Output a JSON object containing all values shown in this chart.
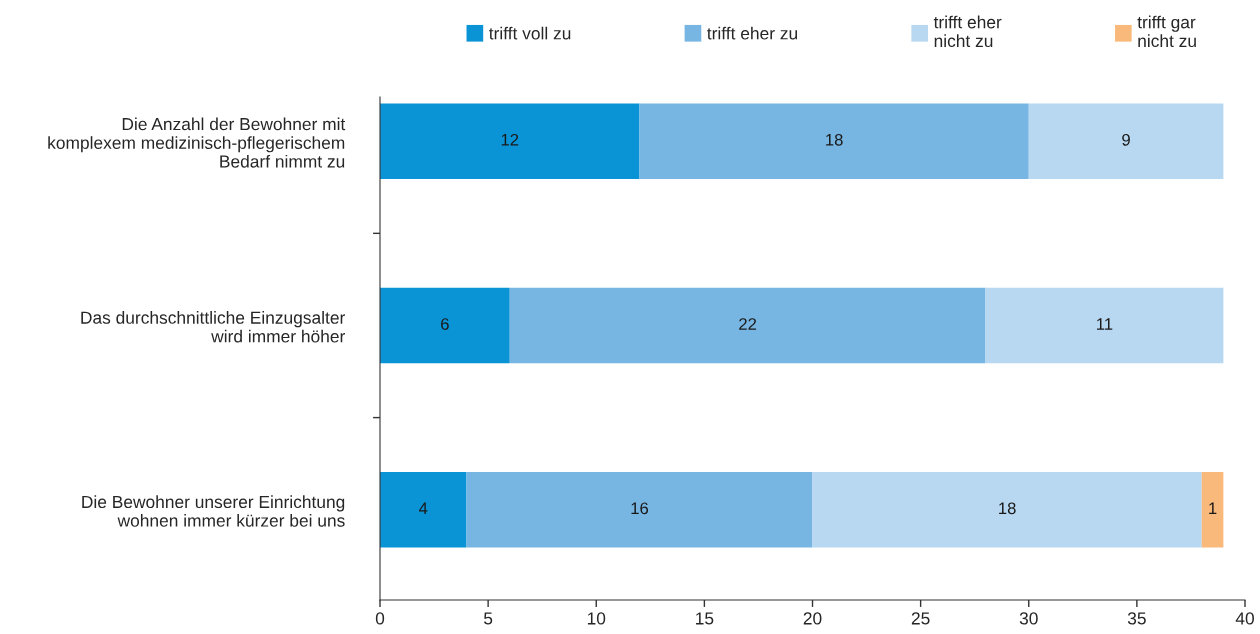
{
  "chart_data": {
    "type": "bar",
    "orientation": "horizontal",
    "stacked": true,
    "categories": [
      "Die Anzahl der Bewohner mit\nkomplexem medizinisch-pflegerischem\nBedarf nimmt zu",
      "Das durchschnittliche Einzugsalter\nwird immer höher",
      "Die Bewohner unserer Einrichtung\nwohnen immer kürzer bei uns"
    ],
    "series": [
      {
        "name": "trifft voll zu",
        "color": "#0a94d6",
        "values": [
          12,
          6,
          4
        ]
      },
      {
        "name": "trifft eher zu",
        "color": "#77b6e2",
        "values": [
          18,
          22,
          16
        ]
      },
      {
        "name": "trifft eher\nnicht zu",
        "color": "#b8d7f0",
        "values": [
          9,
          11,
          18
        ]
      },
      {
        "name": "trifft gar\nnicht zu",
        "color": "#f9b97a",
        "values": [
          null,
          null,
          1
        ]
      }
    ],
    "xlim": [
      0,
      40
    ],
    "xticks": [
      0,
      5,
      10,
      15,
      20,
      25,
      30,
      35,
      40
    ],
    "data_labels": true,
    "legend": "top",
    "grid": false
  }
}
